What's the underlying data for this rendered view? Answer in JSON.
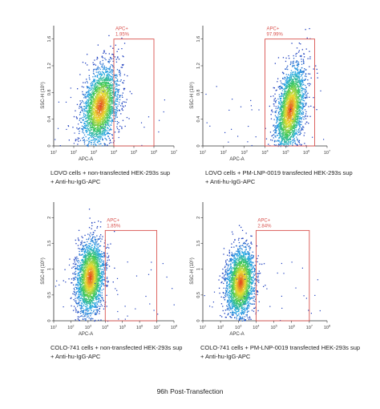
{
  "chart_data": [
    {
      "type": "scatter",
      "xlabel": "APC-A",
      "ylabel": "SSC-H (10⁶)",
      "x_ticks": [
        {
          "base": "10",
          "exp": "1"
        },
        {
          "base": "10",
          "exp": "2"
        },
        {
          "base": "10",
          "exp": "3"
        },
        {
          "base": "10",
          "exp": "4"
        },
        {
          "base": "10",
          "exp": "5"
        },
        {
          "base": "10",
          "exp": "6"
        },
        {
          "base": "10",
          "exp": "7"
        }
      ],
      "y_ticks": [
        "0",
        "0.4",
        "0.8",
        "1.2",
        "1.6"
      ],
      "x_log_range": [
        1,
        7
      ],
      "ylim": [
        0,
        1.8
      ],
      "gate": {
        "name": "APC+",
        "percent": "1.95%",
        "x_log_range": [
          4,
          6.0
        ],
        "y_range": [
          0,
          1.6
        ]
      },
      "population": {
        "center_log_x": 3.3,
        "center_y": 0.6,
        "spread_log_x": 0.45,
        "spread_y": 0.28,
        "tilt": 0.35
      },
      "caption_lines": [
        "LOVO cells + non-transfected HEK-293s sup",
        "+ Anti-hu-IgG-APC"
      ]
    },
    {
      "type": "scatter",
      "xlabel": "APC-A",
      "ylabel": "SSC-H (10⁶)",
      "x_ticks": [
        {
          "base": "10",
          "exp": "1"
        },
        {
          "base": "10",
          "exp": "2"
        },
        {
          "base": "10",
          "exp": "3"
        },
        {
          "base": "10",
          "exp": "4"
        },
        {
          "base": "10",
          "exp": "5"
        },
        {
          "base": "10",
          "exp": "6"
        },
        {
          "base": "10",
          "exp": "7"
        }
      ],
      "y_ticks": [
        "0",
        "0.4",
        "0.8",
        "1.2",
        "1.6"
      ],
      "x_log_range": [
        1,
        7
      ],
      "ylim": [
        0,
        1.8
      ],
      "gate": {
        "name": "APC+",
        "percent": "97.99%",
        "x_log_range": [
          4,
          6.4
        ],
        "y_range": [
          0,
          1.6
        ]
      },
      "population": {
        "center_log_x": 5.2,
        "center_y": 0.55,
        "spread_log_x": 0.35,
        "spread_y": 0.3,
        "tilt": 0.45
      },
      "caption_lines": [
        "LOVO cells + PM-LNP-0019 transfected HEK-293s sup",
        "+ Anti-hu-IgG-APC"
      ]
    },
    {
      "type": "scatter",
      "xlabel": "APC-A",
      "ylabel": "SSC-H (10⁶)",
      "x_ticks": [
        {
          "base": "10",
          "exp": "1"
        },
        {
          "base": "10",
          "exp": "2"
        },
        {
          "base": "10",
          "exp": "3"
        },
        {
          "base": "10",
          "exp": "4"
        },
        {
          "base": "10",
          "exp": "5"
        },
        {
          "base": "10",
          "exp": "6"
        },
        {
          "base": "10",
          "exp": "7"
        },
        {
          "base": "10",
          "exp": "8"
        }
      ],
      "y_ticks": [
        "0",
        "0.5",
        "1",
        "1.5",
        "2"
      ],
      "x_log_range": [
        1,
        8
      ],
      "ylim": [
        0,
        2.3
      ],
      "gate": {
        "name": "APC+",
        "percent": "1.85%",
        "x_log_range": [
          4,
          7.0
        ],
        "y_range": [
          0,
          1.75
        ]
      },
      "population": {
        "center_log_x": 3.1,
        "center_y": 0.85,
        "spread_log_x": 0.4,
        "spread_y": 0.35,
        "tilt": 0.15
      },
      "caption_lines": [
        "COLO-741 cells + non-transfected HEK-293s sup",
        "+ Anti-hu-IgG-APC"
      ]
    },
    {
      "type": "scatter",
      "xlabel": "APC-A",
      "ylabel": "SSC-H (10⁶)",
      "x_ticks": [
        {
          "base": "10",
          "exp": "1"
        },
        {
          "base": "10",
          "exp": "2"
        },
        {
          "base": "10",
          "exp": "3"
        },
        {
          "base": "10",
          "exp": "4"
        },
        {
          "base": "10",
          "exp": "5"
        },
        {
          "base": "10",
          "exp": "6"
        },
        {
          "base": "10",
          "exp": "7"
        },
        {
          "base": "10",
          "exp": "8"
        }
      ],
      "y_ticks": [
        "0",
        "0.5",
        "1",
        "1.5",
        "2"
      ],
      "x_log_range": [
        1,
        8
      ],
      "ylim": [
        0,
        2.3
      ],
      "gate": {
        "name": "APC+",
        "percent": "2.84%",
        "x_log_range": [
          4,
          7.0
        ],
        "y_range": [
          0,
          1.75
        ]
      },
      "population": {
        "center_log_x": 3.1,
        "center_y": 0.75,
        "spread_log_x": 0.4,
        "spread_y": 0.33,
        "tilt": 0.15
      },
      "caption_lines": [
        "COLO-741 cells + PM-LNP-0019 transfected HEK-293s sup",
        "+ Anti-hu-IgG-APC"
      ]
    }
  ],
  "main_caption": "96h Post-Transfection",
  "colors": {
    "gate": "#d9534f",
    "axis": "#333333",
    "density_low": "#1f3fbf",
    "density_high": "#e03a1e"
  }
}
